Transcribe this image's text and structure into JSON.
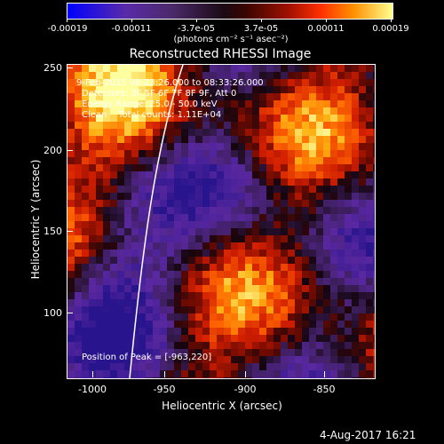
{
  "colorbar": {
    "tick_labels": [
      "-0.00019",
      "-0.00011",
      "-3.7e-05",
      "3.7e-05",
      "0.00011",
      "0.00019"
    ],
    "unit_label": "(photons cm⁻² s⁻¹ asec⁻²)"
  },
  "plot": {
    "title": "Reconstructed RHESSI Image",
    "xlabel": "Heliocentric X (arcsec)",
    "ylabel": "Heliocentric Y (arcsec)",
    "x_tick_labels": [
      "-1000",
      "-950",
      "-900",
      "-850"
    ],
    "y_tick_labels": [
      "250",
      "200",
      "150",
      "100"
    ],
    "annotations": {
      "time_range": "9-Feb-2015 08:23:26.000 to 08:33:26.000",
      "detectors": "Detectors: 3F 5F 6F 7F 8F 9F, Att 0",
      "energy": "Energy Range: 25.0 - 50.0 keV",
      "clean": "Clean    Total counts: 1.11E+04",
      "peak": "Position of Peak = [-963,220]"
    },
    "footer_date": "4-Aug-2017 16:21"
  },
  "chart_data": {
    "type": "heatmap",
    "title": "Reconstructed RHESSI Image",
    "xlabel": "Heliocentric X (arcsec)",
    "ylabel": "Heliocentric Y (arcsec)",
    "xlim": [
      -1013,
      -822
    ],
    "ylim": [
      57,
      254
    ],
    "colorbar_range": [
      -0.00019,
      0.00019
    ],
    "peak_position": [
      -963,
      220
    ]
  }
}
